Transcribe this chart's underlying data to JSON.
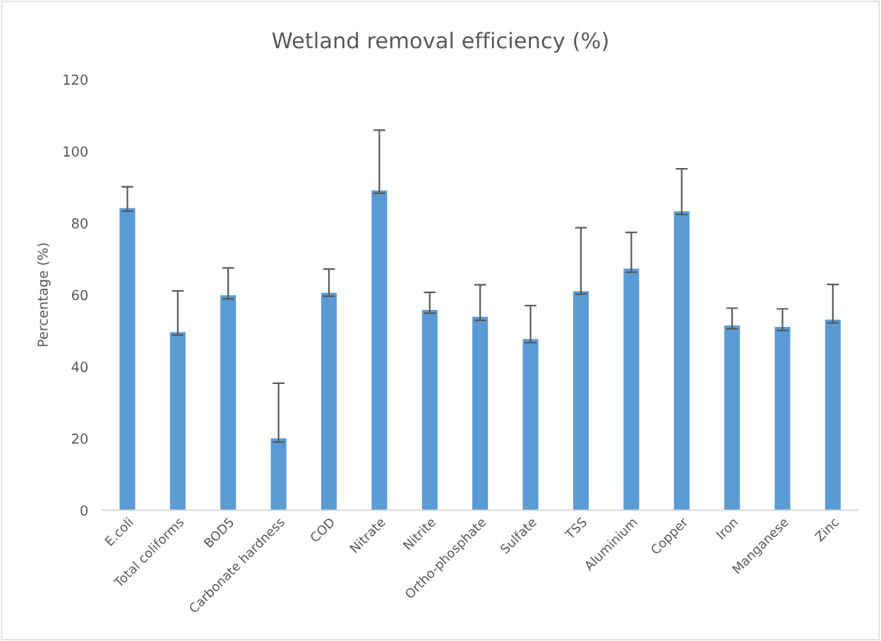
{
  "chart_data": {
    "type": "bar",
    "title": "Wetland removal efficiency (%)",
    "ylabel": "Percentage (%)",
    "categories": [
      "E.coli",
      "Total coliforms",
      "BOD5",
      "Carbonate hardness",
      "COD",
      "Nitrate",
      "Nitrite",
      "Ortho-phosphate",
      "Sulfate",
      "TSS",
      "Aluminium",
      "Copper",
      "Iron",
      "Manganese",
      "Zinc"
    ],
    "values": [
      84.2,
      49.6,
      59.9,
      20.0,
      60.6,
      89.1,
      55.8,
      53.9,
      47.7,
      61.0,
      67.3,
      83.3,
      51.5,
      51.1,
      53.1
    ],
    "errors": [
      [
        83.3,
        90.1
      ],
      [
        48.8,
        61.1
      ],
      [
        58.9,
        67.5
      ],
      [
        19.0,
        35.4
      ],
      [
        59.6,
        67.2
      ],
      [
        88.3,
        105.9
      ],
      [
        54.9,
        60.7
      ],
      [
        52.9,
        62.8
      ],
      [
        46.7,
        57.0
      ],
      [
        60.2,
        78.7
      ],
      [
        66.3,
        77.4
      ],
      [
        82.4,
        95.1
      ],
      [
        50.5,
        56.3
      ],
      [
        50.1,
        56.1
      ],
      [
        52.2,
        62.9
      ]
    ],
    "color": "#5b9bd5",
    "ylim": [
      0,
      120
    ],
    "yticks": [
      0,
      20,
      40,
      60,
      80,
      100,
      120
    ],
    "grid": false
  }
}
